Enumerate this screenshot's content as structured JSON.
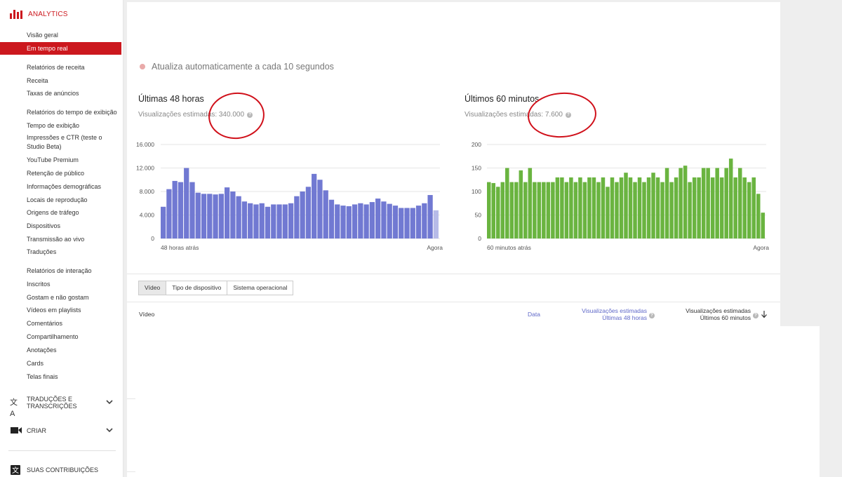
{
  "sidebar": {
    "header": "ANALYTICS",
    "items": [
      {
        "label": "Visão geral"
      },
      {
        "label": "Em tempo real"
      },
      {
        "label": "Relatórios de receita"
      },
      {
        "label": "Receita"
      },
      {
        "label": "Taxas de anúncios"
      },
      {
        "label": "Relatórios do tempo de exibição"
      },
      {
        "label": "Tempo de exibição"
      },
      {
        "label": "Impressões e CTR (teste o Studio Beta)"
      },
      {
        "label": "YouTube Premium"
      },
      {
        "label": "Retenção de público"
      },
      {
        "label": "Informações demográficas"
      },
      {
        "label": "Locais de reprodução"
      },
      {
        "label": "Origens de tráfego"
      },
      {
        "label": "Dispositivos"
      },
      {
        "label": "Transmissão ao vivo"
      },
      {
        "label": "Traduções"
      },
      {
        "label": "Relatórios de interação"
      },
      {
        "label": "Inscritos"
      },
      {
        "label": "Gostam e não gostam"
      },
      {
        "label": "Vídeos em playlists"
      },
      {
        "label": "Comentários"
      },
      {
        "label": "Compartilhamento"
      },
      {
        "label": "Anotações"
      },
      {
        "label": "Cards"
      },
      {
        "label": "Telas finais"
      }
    ],
    "groups": [
      {
        "label_line1": "TRADUÇÕES E",
        "label_line2": "TRANSCRIÇÕES",
        "icon": "translate-icon"
      },
      {
        "label_line1": "CRIAR",
        "label_line2": "",
        "icon": "video-camera-icon"
      },
      {
        "label_line1": "SUAS CONTRIBUIÇÕES",
        "label_line2": "",
        "icon": "translate-icon"
      }
    ]
  },
  "main": {
    "auto_update": "Atualiza automaticamente a cada 10 segundos",
    "charts": [
      {
        "title": "Últimas 48 horas",
        "subtitle": "Visualizações estimadas: 340.000"
      },
      {
        "title": "Últimos 60 minutos",
        "subtitle": "Visualizações estimadas: 7.600"
      }
    ],
    "tabs": [
      "Vídeo",
      "Tipo de dispositivo",
      "Sistema operacional"
    ],
    "table": {
      "col_video": "Vídeo",
      "col_date": "Data",
      "col_48h_line1": "Visualizações estimadas",
      "col_48h_line2": "Últimas 48 horas",
      "col_60m_line1": "Visualizações estimadas",
      "col_60m_line2": "Últimos 60 minutos"
    }
  },
  "chart_data": [
    {
      "type": "bar",
      "title": "Últimas 48 horas",
      "color": "#7179d2",
      "partial_color": "#b7bbe8",
      "x_start_label": "48 horas atrás",
      "x_end_label": "Agora",
      "yticks": [
        "16.000",
        "12.000",
        "8.000",
        "4.000",
        "0"
      ],
      "ylim": [
        0,
        16000
      ],
      "values": [
        5400,
        8400,
        9800,
        9600,
        12000,
        9600,
        7800,
        7600,
        7600,
        7500,
        7600,
        8700,
        8000,
        7200,
        6300,
        6000,
        5800,
        6000,
        5400,
        5800,
        5800,
        5800,
        6000,
        7200,
        8000,
        8800,
        11000,
        10000,
        8200,
        6600,
        5800,
        5600,
        5500,
        5800,
        6000,
        5800,
        6200,
        6800,
        6300,
        5900,
        5600,
        5200,
        5200,
        5200,
        5600,
        6000,
        7400,
        4800
      ]
    },
    {
      "type": "bar",
      "title": "Últimos 60 minutos",
      "color": "#6ab440",
      "x_start_label": "60 minutos atrás",
      "x_end_label": "Agora",
      "yticks": [
        "200",
        "150",
        "100",
        "50",
        "0"
      ],
      "ylim": [
        0,
        200
      ],
      "values": [
        120,
        118,
        110,
        120,
        150,
        120,
        120,
        145,
        120,
        150,
        120,
        120,
        120,
        120,
        120,
        130,
        130,
        120,
        130,
        120,
        130,
        120,
        130,
        130,
        120,
        130,
        110,
        130,
        120,
        130,
        140,
        130,
        120,
        130,
        120,
        130,
        140,
        130,
        120,
        150,
        120,
        130,
        150,
        155,
        120,
        130,
        130,
        150,
        150,
        130,
        150,
        130,
        150,
        170,
        130,
        150,
        130,
        120,
        130,
        95,
        55
      ]
    }
  ]
}
